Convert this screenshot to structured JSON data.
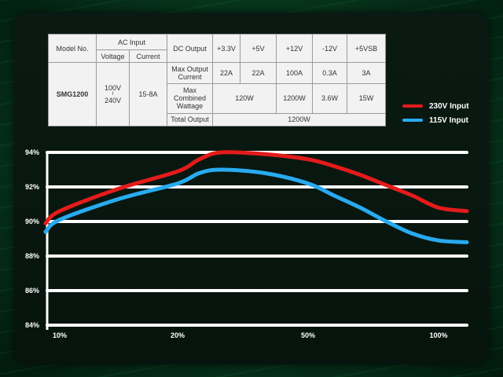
{
  "spec_table": {
    "model_header": "Model No.",
    "ac_input_header": "AC Input",
    "voltage_header": "Voltage",
    "current_header": "Current",
    "dc_output_header": "DC Output",
    "rails": [
      "+3.3V",
      "+5V",
      "+12V",
      "-12V",
      "+5VSB"
    ],
    "model": "SMG1200",
    "voltage_top": "100V",
    "voltage_sep": "I",
    "voltage_bottom": "240V",
    "current": "15-8A",
    "max_output_current_label": "Max Output Current",
    "max_output_current": [
      "22A",
      "22A",
      "100A",
      "0.3A",
      "3A"
    ],
    "max_combined_wattage_label": "Max Combined Wattage",
    "combined_3v3_5v": "120W",
    "combined_12v": "1200W",
    "combined_neg12v": "3.6W",
    "combined_5vsb": "15W",
    "total_output_label": "Total Output",
    "total_output": "1200W"
  },
  "colors": {
    "series_230v": "#e41b1b",
    "series_115v": "#29aaf0",
    "gridline": "#ffffff",
    "table_bg": "#f2f2f2"
  },
  "chart_data": {
    "type": "line",
    "x_ticks": [
      "10%",
      "20%",
      "50%",
      "100%"
    ],
    "y_ticks": [
      "84%",
      "86%",
      "88%",
      "90%",
      "92%",
      "94%"
    ],
    "ylim": [
      84,
      94
    ],
    "grid": true,
    "legend_position": "top-right",
    "series": [
      {
        "name": "230V Input",
        "color": "#e41b1b",
        "x": [
          7,
          10,
          15,
          20,
          25,
          30,
          40,
          50,
          60,
          70,
          80,
          90,
          100,
          105
        ],
        "values": [
          89.9,
          90.6,
          91.9,
          92.9,
          93.6,
          94.0,
          93.9,
          93.6,
          93.2,
          92.7,
          92.1,
          91.5,
          90.8,
          90.6
        ]
      },
      {
        "name": "115V Input",
        "color": "#29aaf0",
        "x": [
          7,
          10,
          15,
          20,
          25,
          30,
          40,
          50,
          60,
          70,
          80,
          90,
          100,
          105
        ],
        "values": [
          89.4,
          90.1,
          91.3,
          92.2,
          92.8,
          93.0,
          92.8,
          92.2,
          91.5,
          90.8,
          90.0,
          89.3,
          88.9,
          88.8
        ]
      }
    ]
  }
}
